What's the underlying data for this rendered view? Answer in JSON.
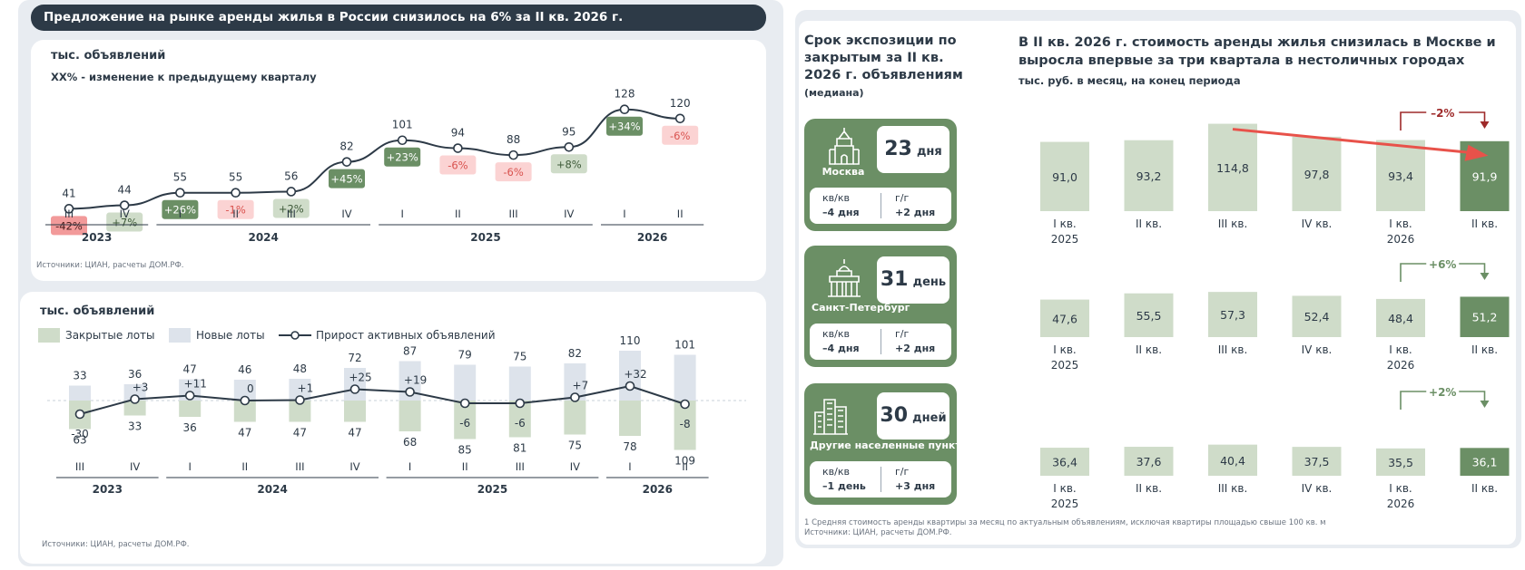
{
  "banner": "Предложение на рынке аренды жилья в России снизилось на 6% за II кв. 2026 г.",
  "chart1": {
    "unit_label": "тыс. объявлений",
    "note": "ХХ% - изменение к предыдущему кварталу",
    "source": "Источники: ЦИАН, расчеты ДОМ.РФ."
  },
  "chart2": {
    "unit_label": "тыс. объявлений",
    "legend": {
      "closed": "Закрытые лоты",
      "new": "Новые лоты",
      "growth": "Прирост активных объявлений"
    },
    "source": "Источники: ЦИАН, расчеты ДОМ.РФ."
  },
  "expo": {
    "title": "Срок экспозиции по закрытым за II кв. 2026 г. объявлениям",
    "note": "(медиана)",
    "qq_label": "кв/кв",
    "yy_label": "г/г",
    "cities": [
      {
        "name": "Москва",
        "days_num": "23",
        "days_word": "дня",
        "qq": "–4 дня",
        "yy": "+2 дня",
        "icon": "kremlin-icon"
      },
      {
        "name": "Санкт-Петербург",
        "days_num": "31",
        "days_word": "день",
        "qq": "–4 дня",
        "yy": "+2 дня",
        "icon": "cathedral-icon"
      },
      {
        "name": "Другие населенные пункты",
        "days_num": "30",
        "days_word": "дней",
        "qq": "–1 день",
        "yy": "+3 дня",
        "icon": "skyscrapers-icon"
      }
    ]
  },
  "rent": {
    "title": "В II кв. 2026 г. стоимость аренды жилья снизилась в Москве и выросла впервые за три квартала в нестоличных городах",
    "subtitle": "тыс. руб. в месяц, на конец периода",
    "footnote1": "1 Средняя стоимость аренды квартиры за месяц по актуальным объявлениям, исключая квартиры площадью свыше 100 кв. м",
    "footnote2": "Источники: ЦИАН, расчеты ДОМ.РФ."
  },
  "colors": {
    "dark": "#2d3a47",
    "green": "#6b8f65",
    "lightgreen": "#cfdcc9",
    "newlots": "#dde3eb",
    "red": "#e8524a",
    "darkred": "#9e2a2a",
    "pinkbg": "#fbd3d3",
    "pinktext": "#d9534f"
  },
  "chart_data": [
    {
      "type": "line",
      "title": "",
      "ylabel": "тыс. объявлений",
      "categories": [
        "III",
        "IV",
        "I",
        "II",
        "III",
        "IV",
        "I",
        "II",
        "III",
        "IV",
        "I",
        "II"
      ],
      "year_groups": [
        {
          "label": "2023",
          "from": 0,
          "to": 1
        },
        {
          "label": "2024",
          "from": 2,
          "to": 5
        },
        {
          "label": "2025",
          "from": 6,
          "to": 9
        },
        {
          "label": "2026",
          "from": 10,
          "to": 11
        }
      ],
      "values": [
        41,
        44,
        55,
        55,
        56,
        82,
        101,
        94,
        88,
        95,
        128,
        120
      ],
      "change_labels": [
        "-42%",
        "+7%",
        "+26%",
        "-1%",
        "+2%",
        "+45%",
        "+23%",
        "-6%",
        "-6%",
        "+8%",
        "+34%",
        "-6%"
      ]
    },
    {
      "type": "bar",
      "ylabel": "тыс. объявлений",
      "categories": [
        "III",
        "IV",
        "I",
        "II",
        "III",
        "IV",
        "I",
        "II",
        "III",
        "IV",
        "I",
        "II"
      ],
      "year_groups": [
        {
          "label": "2023",
          "from": 0,
          "to": 1
        },
        {
          "label": "2024",
          "from": 2,
          "to": 5
        },
        {
          "label": "2025",
          "from": 6,
          "to": 9
        },
        {
          "label": "2026",
          "from": 10,
          "to": 11
        }
      ],
      "series": [
        {
          "name": "Новые лоты",
          "values": [
            33,
            36,
            47,
            46,
            48,
            72,
            87,
            79,
            75,
            82,
            110,
            101
          ]
        },
        {
          "name": "Закрытые лоты",
          "values": [
            63,
            33,
            36,
            47,
            47,
            47,
            68,
            85,
            81,
            75,
            78,
            109
          ]
        },
        {
          "name": "Прирост активных объявлений",
          "type": "line",
          "values": [
            -30,
            3,
            11,
            0,
            1,
            25,
            19,
            -6,
            -6,
            7,
            32,
            -8
          ],
          "labels": [
            "-30",
            "+3",
            "+11",
            "0",
            "+1",
            "+25",
            "+19",
            "-6",
            "-6",
            "+7",
            "+32",
            "-8"
          ]
        }
      ]
    },
    {
      "type": "bar",
      "region": "Москва",
      "categories": [
        [
          "I кв.",
          "2025"
        ],
        [
          "II кв."
        ],
        [
          "III кв."
        ],
        [
          "IV кв."
        ],
        [
          "I кв.",
          "2026"
        ],
        [
          "II кв."
        ]
      ],
      "values": [
        91.0,
        93.2,
        114.8,
        97.8,
        93.4,
        91.9
      ],
      "value_labels": [
        "91,0",
        "93,2",
        "114,8",
        "97,8",
        "93,4",
        "91,9"
      ],
      "yoy_label": "–2%"
    },
    {
      "type": "bar",
      "region": "Санкт-Петербург",
      "categories": [
        [
          "I кв.",
          "2025"
        ],
        [
          "II кв."
        ],
        [
          "III кв."
        ],
        [
          "IV кв."
        ],
        [
          "I кв.",
          "2026"
        ],
        [
          "II кв."
        ]
      ],
      "values": [
        47.6,
        55.5,
        57.3,
        52.4,
        48.4,
        51.2
      ],
      "value_labels": [
        "47,6",
        "55,5",
        "57,3",
        "52,4",
        "48,4",
        "51,2"
      ],
      "yoy_label": "+6%"
    },
    {
      "type": "bar",
      "region": "Другие населенные пункты",
      "categories": [
        [
          "I кв.",
          "2025"
        ],
        [
          "II кв."
        ],
        [
          "III кв."
        ],
        [
          "IV кв."
        ],
        [
          "I кв.",
          "2026"
        ],
        [
          "II кв."
        ]
      ],
      "values": [
        36.4,
        37.6,
        40.4,
        37.5,
        35.5,
        36.1
      ],
      "value_labels": [
        "36,4",
        "37,6",
        "40,4",
        "37,5",
        "35,5",
        "36,1"
      ],
      "yoy_label": "+2%"
    }
  ]
}
